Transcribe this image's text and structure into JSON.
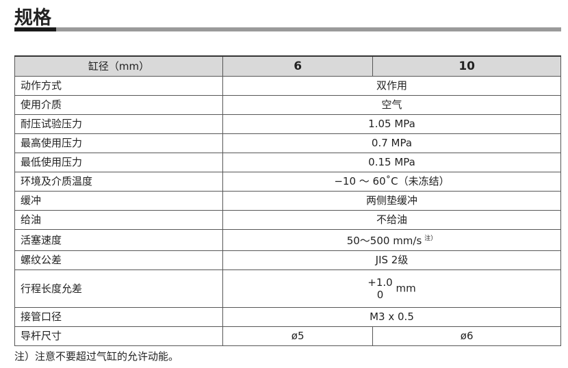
{
  "title": "规格",
  "header": {
    "label": "缸径（mm）",
    "sizes": [
      "6",
      "10"
    ]
  },
  "rows": [
    {
      "label": "动作方式",
      "value": "双作用"
    },
    {
      "label": "使用介质",
      "value": "空气"
    },
    {
      "label": "耐压试验压力",
      "value": "1.05 MPa"
    },
    {
      "label": "最高使用压力",
      "value": "0.7 MPa"
    },
    {
      "label": "最低使用压力",
      "value": "0.15 MPa"
    },
    {
      "label": "环境及介质温度",
      "value": "−10 ～ 60˚C（未冻结）"
    },
    {
      "label": "缓冲",
      "value": "两侧垫缓冲"
    },
    {
      "label": "给油",
      "value": "不给油"
    },
    {
      "label": "活塞速度",
      "value": "50～500 mm/s",
      "note": "注）"
    },
    {
      "label": "螺纹公差",
      "value": "JIS 2级"
    },
    {
      "label": "行程长度允差",
      "upper": "+1.0",
      "lower": "0",
      "unit": "mm"
    },
    {
      "label": "接管口径",
      "value": "M3 x 0.5"
    },
    {
      "label": "导杆尺寸",
      "values": [
        "ø5",
        "ø6"
      ]
    }
  ],
  "footnote": "注）注意不要超过气缸的允许动能。"
}
